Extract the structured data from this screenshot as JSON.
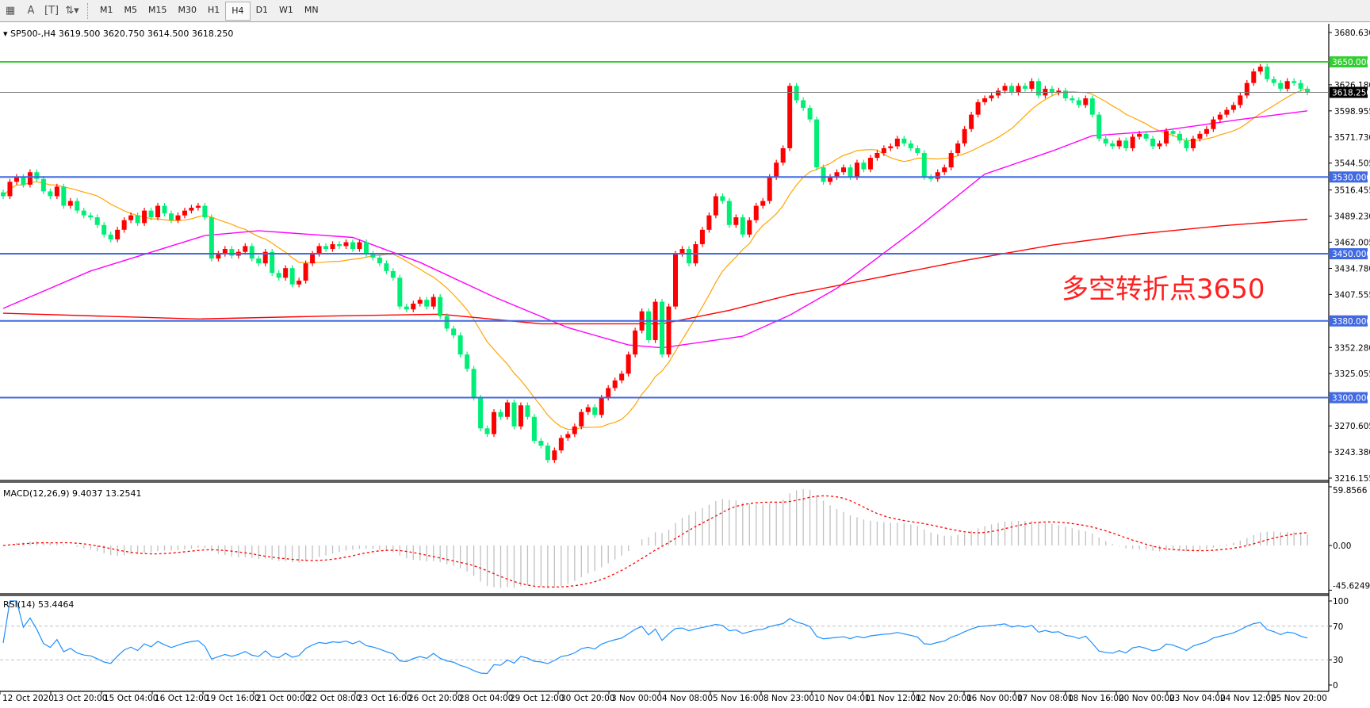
{
  "toolbar": {
    "icons": [
      "grid-icon",
      "text-A-icon",
      "text-box-icon",
      "arrows-icon"
    ],
    "timeframes": [
      "M1",
      "M5",
      "M15",
      "M30",
      "H1",
      "H4",
      "D1",
      "W1",
      "MN"
    ],
    "active_timeframe": "H4"
  },
  "header": {
    "symbol": "SP500-,H4",
    "open": "3619.500",
    "high": "3620.750",
    "low": "3614.500",
    "close": "3618.250"
  },
  "annotation": {
    "text": "多空转折点3650",
    "color": "#ff2020"
  },
  "colors": {
    "up": "#ff0000",
    "down": "#00ee76",
    "ma_fast": "#ffa500",
    "ma_mid": "#ff00ff",
    "ma_slow": "#ff0000",
    "level": "#4169e1",
    "pivot": "#32cd32",
    "price_line": "#808080",
    "macd_hist": "#c0c0c0",
    "macd_signal": "#ff0000",
    "rsi": "#1e90ff"
  },
  "chart_data": [
    {
      "type": "candlestick",
      "title": "SP500-,H4",
      "ylim": [
        3216.155,
        3680.63
      ],
      "y_ticks": [
        "3680.630",
        "3626.180",
        "3598.955",
        "3571.730",
        "3544.505",
        "3516.455",
        "3489.230",
        "3462.005",
        "3434.780",
        "3407.555",
        "3352.280",
        "3325.055",
        "3270.605",
        "3243.380",
        "3216.155"
      ],
      "x_tick_labels": [
        "12 Oct 2020",
        "13 Oct 20:00",
        "15 Oct 04:00",
        "16 Oct 12:00",
        "19 Oct 16:00",
        "21 Oct 00:00",
        "22 Oct 08:00",
        "23 Oct 16:00",
        "26 Oct 20:00",
        "28 Oct 04:00",
        "29 Oct 12:00",
        "30 Oct 20:00",
        "3 Nov 00:00",
        "4 Nov 08:00",
        "5 Nov 16:00",
        "8 Nov 23:00",
        "10 Nov 04:00",
        "11 Nov 12:00",
        "12 Nov 20:00",
        "16 Nov 00:00",
        "17 Nov 08:00",
        "18 Nov 16:00",
        "20 Nov 00:00",
        "23 Nov 04:00",
        "24 Nov 12:00",
        "25 Nov 20:00"
      ],
      "close": [
        3510,
        3525,
        3530,
        3522,
        3535,
        3528,
        3515,
        3510,
        3520,
        3500,
        3505,
        3495,
        3490,
        3488,
        3480,
        3470,
        3465,
        3475,
        3485,
        3490,
        3482,
        3495,
        3488,
        3500,
        3492,
        3485,
        3490,
        3495,
        3498,
        3500,
        3488,
        3445,
        3450,
        3455,
        3448,
        3452,
        3458,
        3445,
        3440,
        3452,
        3430,
        3425,
        3435,
        3418,
        3422,
        3440,
        3450,
        3458,
        3455,
        3460,
        3458,
        3462,
        3455,
        3462,
        3450,
        3446,
        3440,
        3432,
        3425,
        3395,
        3392,
        3398,
        3402,
        3395,
        3405,
        3385,
        3372,
        3365,
        3345,
        3330,
        3300,
        3268,
        3262,
        3285,
        3280,
        3295,
        3270,
        3292,
        3280,
        3255,
        3250,
        3235,
        3245,
        3258,
        3262,
        3270,
        3285,
        3290,
        3282,
        3300,
        3310,
        3318,
        3325,
        3345,
        3370,
        3390,
        3360,
        3400,
        3345,
        3395,
        3450,
        3455,
        3440,
        3460,
        3475,
        3490,
        3510,
        3505,
        3480,
        3488,
        3470,
        3485,
        3500,
        3505,
        3530,
        3545,
        3560,
        3625,
        3610,
        3602,
        3590,
        3540,
        3525,
        3530,
        3535,
        3540,
        3530,
        3545,
        3538,
        3550,
        3555,
        3560,
        3562,
        3570,
        3565,
        3560,
        3555,
        3530,
        3528,
        3535,
        3540,
        3555,
        3565,
        3580,
        3595,
        3608,
        3612,
        3615,
        3620,
        3625,
        3618,
        3625,
        3622,
        3630,
        3615,
        3622,
        3618,
        3620,
        3612,
        3610,
        3605,
        3612,
        3595,
        3570,
        3565,
        3562,
        3568,
        3560,
        3572,
        3575,
        3570,
        3562,
        3565,
        3578,
        3575,
        3568,
        3560,
        3570,
        3575,
        3580,
        3590,
        3595,
        3600,
        3605,
        3615,
        3628,
        3640,
        3645,
        3632,
        3628,
        3622,
        3630,
        3628,
        3622,
        3618.25
      ],
      "ma_mid": {
        "bar": [
          0,
          13,
          30,
          38,
          52,
          62,
          73,
          84,
          93,
          98,
          110,
          117,
          124,
          136,
          146,
          156,
          162,
          172,
          184,
          194
        ],
        "value": [
          3393,
          3432,
          3469,
          3474,
          3467,
          3441,
          3405,
          3373,
          3355,
          3352,
          3364,
          3386,
          3414,
          3477,
          3533,
          3557,
          3573,
          3578,
          3590,
          3599
        ]
      },
      "ma_slow": {
        "bar": [
          0,
          29,
          48,
          65,
          80,
          98,
          108,
          117,
          130,
          143,
          156,
          168,
          181,
          194
        ],
        "value": [
          3388,
          3382,
          3385,
          3387,
          3377,
          3377,
          3391,
          3407,
          3425,
          3443,
          3459,
          3470,
          3479,
          3486
        ]
      },
      "levels": [
        {
          "label": "3650.000",
          "value": 3650,
          "kind": "pivot"
        },
        {
          "label": "3530.000",
          "value": 3530,
          "kind": "level"
        },
        {
          "label": "3450.000",
          "value": 3450,
          "kind": "level"
        },
        {
          "label": "3380.000",
          "value": 3380,
          "kind": "level"
        },
        {
          "label": "3300.000",
          "value": 3300,
          "kind": "level"
        }
      ],
      "current_price": {
        "label": "3618.250",
        "value": 3618.25
      }
    },
    {
      "type": "bar",
      "title": "MACD(12,26,9) 9.4037 13.2541",
      "params": [
        12,
        26,
        9
      ],
      "ylim": [
        -45.6249,
        59.8566
      ],
      "y_ticks": [
        "59.8566",
        "0.00",
        "-45.6249"
      ]
    },
    {
      "type": "line",
      "title": "RSI(14) 53.4464",
      "period": 14,
      "ylim": [
        0,
        100
      ],
      "y_ticks": [
        "100",
        "70",
        "30",
        "0"
      ],
      "levels": [
        70,
        30
      ]
    }
  ]
}
